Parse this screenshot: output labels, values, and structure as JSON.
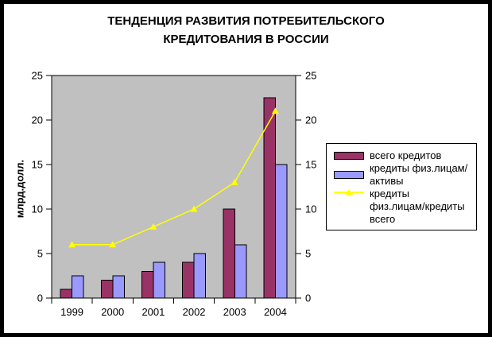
{
  "title": {
    "line1": "ТЕНДЕНЦИЯ РАЗВИТИЯ ПОТРЕБИТЕЛЬСКОГО",
    "line2": "КРЕДИТОВАНИЯ В РОССИИ"
  },
  "chart_data": {
    "type": "bar",
    "subtype": "grouped bars with overlay line",
    "title": "ТЕНДЕНЦИЯ РАЗВИТИЯ ПОТРЕБИТЕЛЬСКОГО КРЕДИТОВАНИЯ В РОССИИ",
    "categories": [
      "1999",
      "2000",
      "2001",
      "2002",
      "2003",
      "2004"
    ],
    "series": [
      {
        "name": "всего кредитов",
        "type": "bar",
        "color": "#993366",
        "values": [
          1,
          2,
          3,
          4,
          10,
          22.5
        ]
      },
      {
        "name": "кредиты физ.лицам/активы",
        "type": "bar",
        "color": "#9999FF",
        "values": [
          2.5,
          2.5,
          4,
          5,
          6,
          15
        ]
      },
      {
        "name": "кредиты физ.лицам/кредиты всего",
        "type": "line",
        "color": "#FFFF00",
        "marker": "triangle",
        "values": [
          6,
          6,
          8,
          10,
          13,
          21
        ]
      }
    ],
    "xlabel": "",
    "ylabel": "млрд.долл.",
    "ylim": [
      0,
      25
    ],
    "yticks": [
      0,
      5,
      10,
      15,
      20,
      25
    ],
    "y_axis_right_mirror": true,
    "grid": false,
    "plot_background": "#C0C0C0",
    "bar_border_color": "#000000",
    "axis_color": "#000000",
    "legend_position": "right"
  },
  "legend": {
    "items": [
      {
        "label": "всего кредитов",
        "swatch": "bar",
        "color": "#993366"
      },
      {
        "label": "кредиты физ.лицам/активы",
        "swatch": "bar",
        "color": "#9999FF"
      },
      {
        "label": "кредиты физ.лицам/кредиты всего",
        "label_lines": [
          "кредиты",
          "физ.лицам/кредиты всего"
        ],
        "swatch": "line-triangle",
        "color": "#FFFF00"
      }
    ]
  },
  "colors": {
    "frame": "#000000",
    "background": "#FFFFFF",
    "plot_background": "#C0C0C0",
    "axis_text": "#000000"
  }
}
